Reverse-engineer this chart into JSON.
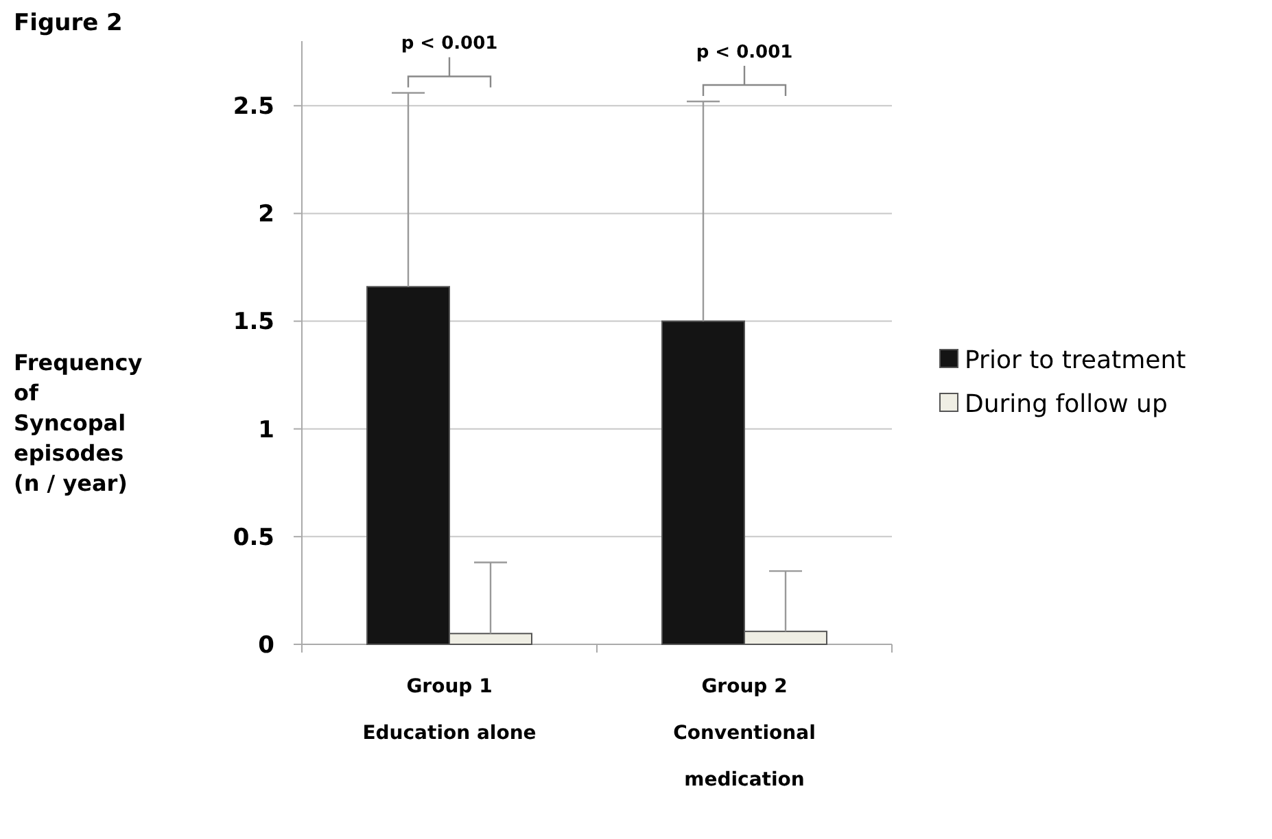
{
  "chart_data": {
    "type": "bar",
    "title": "Figure 2",
    "ylabel": "Frequency of Syncopal episodes (n / year)",
    "categories": [
      "Group 1\nEducation alone",
      "Group 2\nConventional\nmedication"
    ],
    "series": [
      {
        "name": "Prior to treatment",
        "color": "#141414",
        "values": [
          1.66,
          1.5
        ],
        "errors": [
          [
            1.66,
            2.56
          ],
          [
            1.5,
            2.52
          ]
        ]
      },
      {
        "name": "During follow up",
        "color": "#efeee4",
        "values": [
          0.05,
          0.06
        ],
        "errors": [
          [
            0.05,
            0.38
          ],
          [
            0.06,
            0.34
          ]
        ]
      }
    ],
    "ylim": [
      0,
      2.8
    ],
    "yticks": [
      0,
      0.5,
      1,
      1.5,
      2,
      2.5
    ],
    "grid": "y",
    "legend": "right",
    "annotations": [
      "p < 0.001",
      "p < 0.001"
    ]
  }
}
